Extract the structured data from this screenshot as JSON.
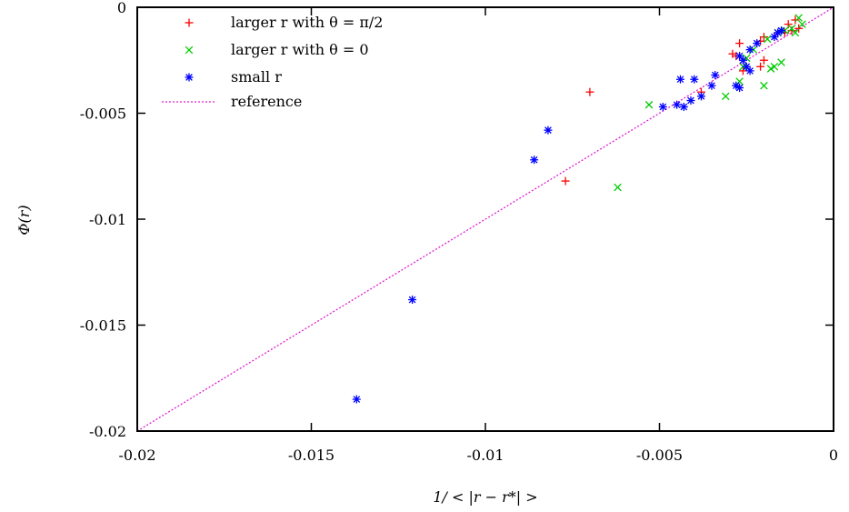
{
  "chart_data": {
    "type": "scatter",
    "title": "",
    "xlabel": "1/ < |r − r*| >",
    "ylabel": "Φ(r)",
    "xlim": [
      -0.02,
      0
    ],
    "ylim": [
      -0.02,
      0
    ],
    "xticks": [
      "-0.02",
      "-0.015",
      "-0.01",
      "-0.005",
      "0"
    ],
    "xtick_values": [
      -0.02,
      -0.015,
      -0.01,
      -0.005,
      0
    ],
    "yticks": [
      "-0.02",
      "-0.015",
      "-0.01",
      "-0.005",
      "0"
    ],
    "ytick_values": [
      -0.02,
      -0.015,
      -0.01,
      -0.005,
      0
    ],
    "grid": false,
    "legend_position": "top-left",
    "series": [
      {
        "name": "larger r with θ = π/2",
        "marker": "plus",
        "color": "#ff0000",
        "points": [
          [
            -0.007,
            -0.004
          ],
          [
            -0.0077,
            -0.0082
          ],
          [
            -0.0038,
            -0.004
          ],
          [
            -0.0028,
            -0.0023
          ],
          [
            -0.0029,
            -0.0022
          ],
          [
            -0.0027,
            -0.0017
          ],
          [
            -0.0026,
            -0.003
          ],
          [
            -0.0021,
            -0.0028
          ],
          [
            -0.002,
            -0.0025
          ],
          [
            -0.0021,
            -0.0016
          ],
          [
            -0.002,
            -0.0014
          ],
          [
            -0.0016,
            -0.0012
          ],
          [
            -0.0014,
            -0.0012
          ],
          [
            -0.0013,
            -0.0008
          ],
          [
            -0.0011,
            -0.0006
          ],
          [
            -0.0012,
            -0.0011
          ],
          [
            -0.001,
            -0.001
          ]
        ]
      },
      {
        "name": "larger r with θ = 0",
        "marker": "cross",
        "color": "#00cc00",
        "points": [
          [
            -0.0053,
            -0.0046
          ],
          [
            -0.0062,
            -0.0085
          ],
          [
            -0.0031,
            -0.0042
          ],
          [
            -0.0027,
            -0.0035
          ],
          [
            -0.0026,
            -0.0028
          ],
          [
            -0.0025,
            -0.0024
          ],
          [
            -0.002,
            -0.0037
          ],
          [
            -0.0018,
            -0.0029
          ],
          [
            -0.0017,
            -0.0028
          ],
          [
            -0.0015,
            -0.0026
          ],
          [
            -0.0019,
            -0.0015
          ],
          [
            -0.0016,
            -0.0012
          ],
          [
            -0.0014,
            -0.0011
          ],
          [
            -0.0012,
            -0.001
          ],
          [
            -0.0011,
            -0.0012
          ],
          [
            -0.0009,
            -0.0008
          ],
          [
            -0.001,
            -0.0005
          ],
          [
            -0.0023,
            -0.002
          ]
        ]
      },
      {
        "name": "small r",
        "marker": "star",
        "color": "#0000ff",
        "points": [
          [
            -0.0137,
            -0.0185
          ],
          [
            -0.0121,
            -0.0138
          ],
          [
            -0.0082,
            -0.0058
          ],
          [
            -0.0086,
            -0.0072
          ],
          [
            -0.0049,
            -0.0047
          ],
          [
            -0.0045,
            -0.0046
          ],
          [
            -0.0043,
            -0.0047
          ],
          [
            -0.0041,
            -0.0044
          ],
          [
            -0.0044,
            -0.0034
          ],
          [
            -0.004,
            -0.0034
          ],
          [
            -0.0038,
            -0.0042
          ],
          [
            -0.0035,
            -0.0037
          ],
          [
            -0.0034,
            -0.0032
          ],
          [
            -0.0028,
            -0.0037
          ],
          [
            -0.0027,
            -0.0038
          ],
          [
            -0.0024,
            -0.003
          ],
          [
            -0.0025,
            -0.0028
          ],
          [
            -0.0026,
            -0.0025
          ],
          [
            -0.0027,
            -0.0023
          ],
          [
            -0.0024,
            -0.002
          ],
          [
            -0.0022,
            -0.0017
          ],
          [
            -0.0017,
            -0.0014
          ],
          [
            -0.0016,
            -0.0012
          ],
          [
            -0.0015,
            -0.0011
          ]
        ]
      },
      {
        "name": "reference",
        "marker": "line-dotted",
        "color": "#e020d0",
        "points": [
          [
            -0.02,
            -0.02
          ],
          [
            0,
            0
          ]
        ]
      }
    ]
  }
}
